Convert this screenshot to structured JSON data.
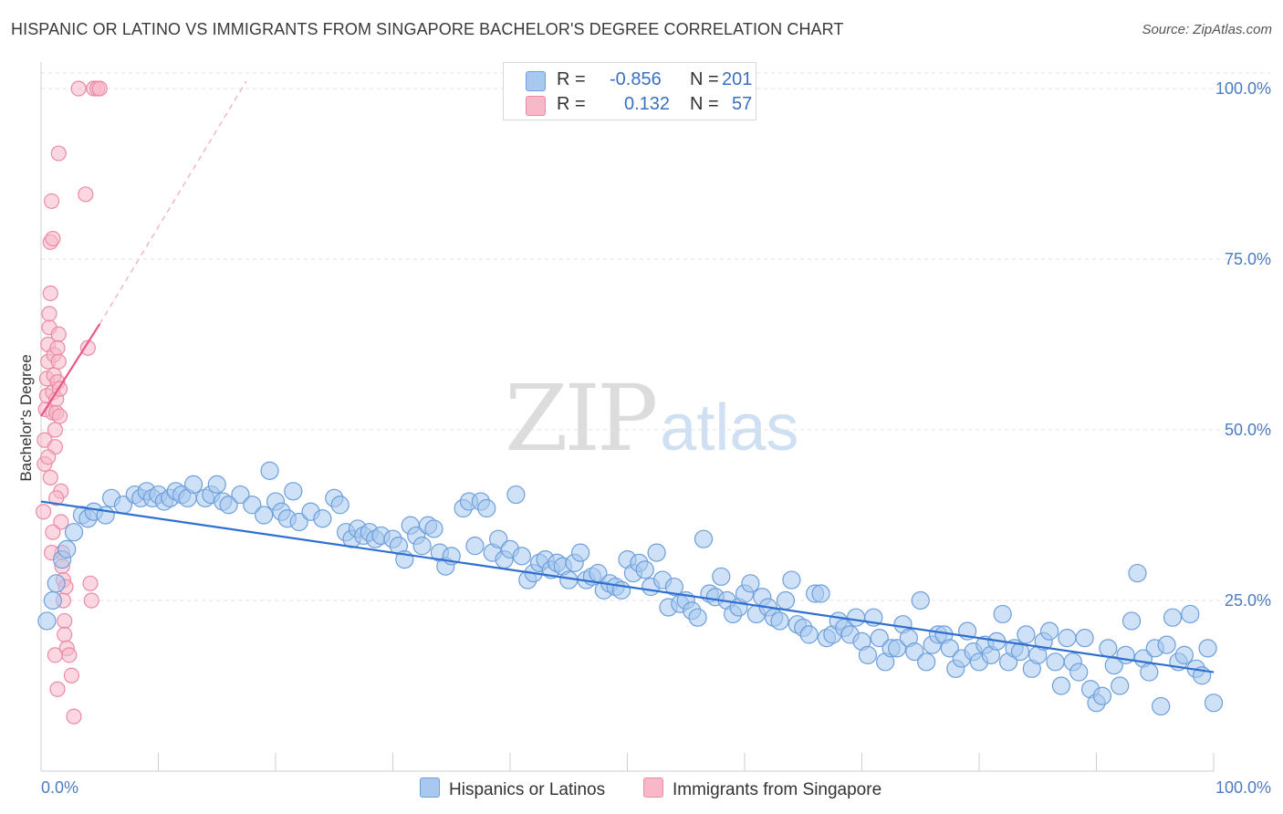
{
  "title": "HISPANIC OR LATINO VS IMMIGRANTS FROM SINGAPORE BACHELOR'S DEGREE CORRELATION CHART",
  "source": "Source: ZipAtlas.com",
  "watermark": {
    "zip": "ZIP",
    "atlas": "atlas"
  },
  "legend": {
    "rows": [
      {
        "r_label": "R =",
        "r_value": "-0.856",
        "n_label": "N =",
        "n_value": "201",
        "color": "#a8c8ef",
        "border": "#6d9fdc"
      },
      {
        "r_label": "R =",
        "r_value": "0.132",
        "n_label": "N =",
        "n_value": "57",
        "color": "#f7b8c8",
        "border": "#ec8aa6"
      }
    ]
  },
  "bottom_legend": {
    "blue_label": "Hispanics or Latinos",
    "pink_label": "Immigrants from Singapore"
  },
  "chart_data": {
    "type": "scatter",
    "title": "HISPANIC OR LATINO VS IMMIGRANTS FROM SINGAPORE BACHELOR'S DEGREE CORRELATION CHART",
    "xlabel": "",
    "ylabel": "Bachelor's Degree",
    "xlim": [
      0,
      100
    ],
    "ylim": [
      0,
      105
    ],
    "y_ticks": [
      25,
      50,
      75,
      100
    ],
    "y_tick_labels": [
      "25.0%",
      "50.0%",
      "75.0%",
      "100.0%"
    ],
    "x_tick_labels": [
      "0.0%",
      "100.0%"
    ],
    "grid": true,
    "legend_position": "top-center",
    "series": [
      {
        "name": "Hispanics or Latinos",
        "color": "#a8c8ef",
        "edge": "#6d9fdc",
        "trend": {
          "x": [
            0,
            100
          ],
          "y": [
            39.5,
            14.5
          ],
          "color": "#2f6fcf"
        },
        "points": [
          [
            0.5,
            22
          ],
          [
            1,
            25
          ],
          [
            1.3,
            27.5
          ],
          [
            1.8,
            31
          ],
          [
            2.2,
            32.5
          ],
          [
            2.8,
            35
          ],
          [
            3.5,
            37.5
          ],
          [
            4,
            37
          ],
          [
            4.5,
            38
          ],
          [
            5.5,
            37.5
          ],
          [
            6,
            40
          ],
          [
            7,
            39
          ],
          [
            8,
            40.5
          ],
          [
            8.5,
            40
          ],
          [
            9,
            41
          ],
          [
            9.5,
            40
          ],
          [
            10,
            40.5
          ],
          [
            10.5,
            39.5
          ],
          [
            11,
            40
          ],
          [
            11.5,
            41
          ],
          [
            12,
            40.5
          ],
          [
            12.5,
            40
          ],
          [
            13,
            42
          ],
          [
            14,
            40
          ],
          [
            14.5,
            40.5
          ],
          [
            15,
            42
          ],
          [
            15.5,
            39.5
          ],
          [
            16,
            39
          ],
          [
            17,
            40.5
          ],
          [
            18,
            39
          ],
          [
            19,
            37.5
          ],
          [
            19.5,
            44
          ],
          [
            20,
            39.5
          ],
          [
            20.5,
            38
          ],
          [
            21,
            37
          ],
          [
            21.5,
            41
          ],
          [
            22,
            36.5
          ],
          [
            23,
            38
          ],
          [
            24,
            37
          ],
          [
            25,
            40
          ],
          [
            25.5,
            39
          ],
          [
            26,
            35
          ],
          [
            26.5,
            34
          ],
          [
            27,
            35.5
          ],
          [
            27.5,
            34.5
          ],
          [
            28,
            35
          ],
          [
            28.5,
            34
          ],
          [
            29,
            34.5
          ],
          [
            30,
            34
          ],
          [
            30.5,
            33
          ],
          [
            31,
            31
          ],
          [
            31.5,
            36
          ],
          [
            32,
            34.5
          ],
          [
            32.5,
            33
          ],
          [
            33,
            36
          ],
          [
            33.5,
            35.5
          ],
          [
            34,
            32
          ],
          [
            34.5,
            30
          ],
          [
            35,
            31.5
          ],
          [
            36,
            38.5
          ],
          [
            36.5,
            39.5
          ],
          [
            37,
            33
          ],
          [
            37.5,
            39.5
          ],
          [
            38,
            38.5
          ],
          [
            38.5,
            32
          ],
          [
            39,
            34
          ],
          [
            39.5,
            31
          ],
          [
            40,
            32.5
          ],
          [
            40.5,
            40.5
          ],
          [
            41,
            31.5
          ],
          [
            41.5,
            28
          ],
          [
            42,
            29
          ],
          [
            42.5,
            30.5
          ],
          [
            43,
            31
          ],
          [
            43.5,
            29.5
          ],
          [
            44,
            30.5
          ],
          [
            44.5,
            30
          ],
          [
            45,
            28
          ],
          [
            45.5,
            30.5
          ],
          [
            46,
            32
          ],
          [
            46.5,
            28
          ],
          [
            47,
            28.5
          ],
          [
            47.5,
            29
          ],
          [
            48,
            26.5
          ],
          [
            48.5,
            27.5
          ],
          [
            49,
            27
          ],
          [
            49.5,
            26.5
          ],
          [
            50,
            31
          ],
          [
            50.5,
            29
          ],
          [
            51,
            30.5
          ],
          [
            51.5,
            29.5
          ],
          [
            52,
            27
          ],
          [
            52.5,
            32
          ],
          [
            53,
            28
          ],
          [
            53.5,
            24
          ],
          [
            54,
            27
          ],
          [
            54.5,
            24.5
          ],
          [
            55,
            25
          ],
          [
            55.5,
            23.5
          ],
          [
            56,
            22.5
          ],
          [
            56.5,
            34
          ],
          [
            57,
            26
          ],
          [
            57.5,
            25.5
          ],
          [
            58,
            28.5
          ],
          [
            58.5,
            25
          ],
          [
            59,
            23
          ],
          [
            59.5,
            24
          ],
          [
            60,
            26
          ],
          [
            60.5,
            27.5
          ],
          [
            61,
            23
          ],
          [
            61.5,
            25.5
          ],
          [
            62,
            24
          ],
          [
            62.5,
            22.5
          ],
          [
            63,
            22
          ],
          [
            63.5,
            25
          ],
          [
            64,
            28
          ],
          [
            64.5,
            21.5
          ],
          [
            65,
            21
          ],
          [
            65.5,
            20
          ],
          [
            66,
            26
          ],
          [
            66.5,
            26
          ],
          [
            67,
            19.5
          ],
          [
            67.5,
            20
          ],
          [
            68,
            22
          ],
          [
            68.5,
            21
          ],
          [
            69,
            20
          ],
          [
            69.5,
            22.5
          ],
          [
            70,
            19
          ],
          [
            70.5,
            17
          ],
          [
            71,
            22.5
          ],
          [
            71.5,
            19.5
          ],
          [
            72,
            16
          ],
          [
            72.5,
            18
          ],
          [
            73,
            18
          ],
          [
            73.5,
            21.5
          ],
          [
            74,
            19.5
          ],
          [
            74.5,
            17.5
          ],
          [
            75,
            25
          ],
          [
            75.5,
            16
          ],
          [
            76,
            18.5
          ],
          [
            76.5,
            20
          ],
          [
            77,
            20
          ],
          [
            77.5,
            18
          ],
          [
            78,
            15
          ],
          [
            78.5,
            16.5
          ],
          [
            79,
            20.5
          ],
          [
            79.5,
            17.5
          ],
          [
            80,
            16
          ],
          [
            80.5,
            18.5
          ],
          [
            81,
            17
          ],
          [
            81.5,
            19
          ],
          [
            82,
            23
          ],
          [
            82.5,
            16
          ],
          [
            83,
            18
          ],
          [
            83.5,
            17.5
          ],
          [
            84,
            20
          ],
          [
            84.5,
            15
          ],
          [
            85,
            17
          ],
          [
            85.5,
            19
          ],
          [
            86,
            20.5
          ],
          [
            86.5,
            16
          ],
          [
            87,
            12.5
          ],
          [
            87.5,
            19.5
          ],
          [
            88,
            16
          ],
          [
            88.5,
            14.5
          ],
          [
            89,
            19.5
          ],
          [
            89.5,
            12
          ],
          [
            90,
            10
          ],
          [
            90.5,
            11
          ],
          [
            91,
            18
          ],
          [
            91.5,
            15.5
          ],
          [
            92,
            12.5
          ],
          [
            92.5,
            17
          ],
          [
            93,
            22
          ],
          [
            93.5,
            29
          ],
          [
            94,
            16.5
          ],
          [
            94.5,
            14.5
          ],
          [
            95,
            18
          ],
          [
            95.5,
            9.5
          ],
          [
            96,
            18.5
          ],
          [
            96.5,
            22.5
          ],
          [
            97,
            16
          ],
          [
            97.5,
            17
          ],
          [
            98,
            23
          ],
          [
            98.5,
            15
          ],
          [
            99,
            14
          ],
          [
            99.5,
            18
          ],
          [
            100,
            10
          ]
        ]
      },
      {
        "name": "Immigrants from Singapore",
        "color": "#f7b8c8",
        "edge": "#ec8aa6",
        "trend": {
          "x": [
            0,
            5
          ],
          "y": [
            52,
            65.5
          ],
          "color": "#e8568a",
          "dashed_to": [
            17.5,
            100
          ]
        },
        "points": [
          [
            0.2,
            38
          ],
          [
            0.3,
            45
          ],
          [
            0.3,
            48.5
          ],
          [
            0.4,
            53
          ],
          [
            0.5,
            55
          ],
          [
            0.5,
            57.5
          ],
          [
            0.6,
            60
          ],
          [
            0.6,
            62.5
          ],
          [
            0.7,
            65
          ],
          [
            0.7,
            67
          ],
          [
            0.8,
            70
          ],
          [
            0.8,
            77.5
          ],
          [
            0.9,
            83.5
          ],
          [
            1,
            78
          ],
          [
            1,
            52.5
          ],
          [
            1,
            55.5
          ],
          [
            1.1,
            58
          ],
          [
            1.1,
            61
          ],
          [
            1.2,
            50
          ],
          [
            1.2,
            47.5
          ],
          [
            1.3,
            54.5
          ],
          [
            1.3,
            52.5
          ],
          [
            1.4,
            57
          ],
          [
            1.4,
            62
          ],
          [
            1.5,
            64
          ],
          [
            1.5,
            60
          ],
          [
            1.6,
            56
          ],
          [
            1.6,
            52
          ],
          [
            1.7,
            41
          ],
          [
            1.7,
            36.5
          ],
          [
            1.8,
            32
          ],
          [
            1.8,
            30
          ],
          [
            1.9,
            28
          ],
          [
            1.9,
            25
          ],
          [
            2,
            22
          ],
          [
            2,
            20
          ],
          [
            2.2,
            18
          ],
          [
            2.4,
            17
          ],
          [
            2.6,
            14
          ],
          [
            2.8,
            8
          ],
          [
            1.5,
            90.5
          ],
          [
            3.2,
            100
          ],
          [
            3.8,
            84.5
          ],
          [
            4,
            62
          ],
          [
            4.2,
            27.5
          ],
          [
            4.3,
            25
          ],
          [
            4.5,
            100
          ],
          [
            4.8,
            100
          ],
          [
            5,
            100
          ],
          [
            0.9,
            32
          ],
          [
            1.2,
            17
          ],
          [
            1.4,
            12
          ],
          [
            0.6,
            46
          ],
          [
            0.8,
            43
          ],
          [
            1.0,
            35
          ],
          [
            1.3,
            40
          ],
          [
            2.1,
            27
          ]
        ]
      }
    ]
  }
}
